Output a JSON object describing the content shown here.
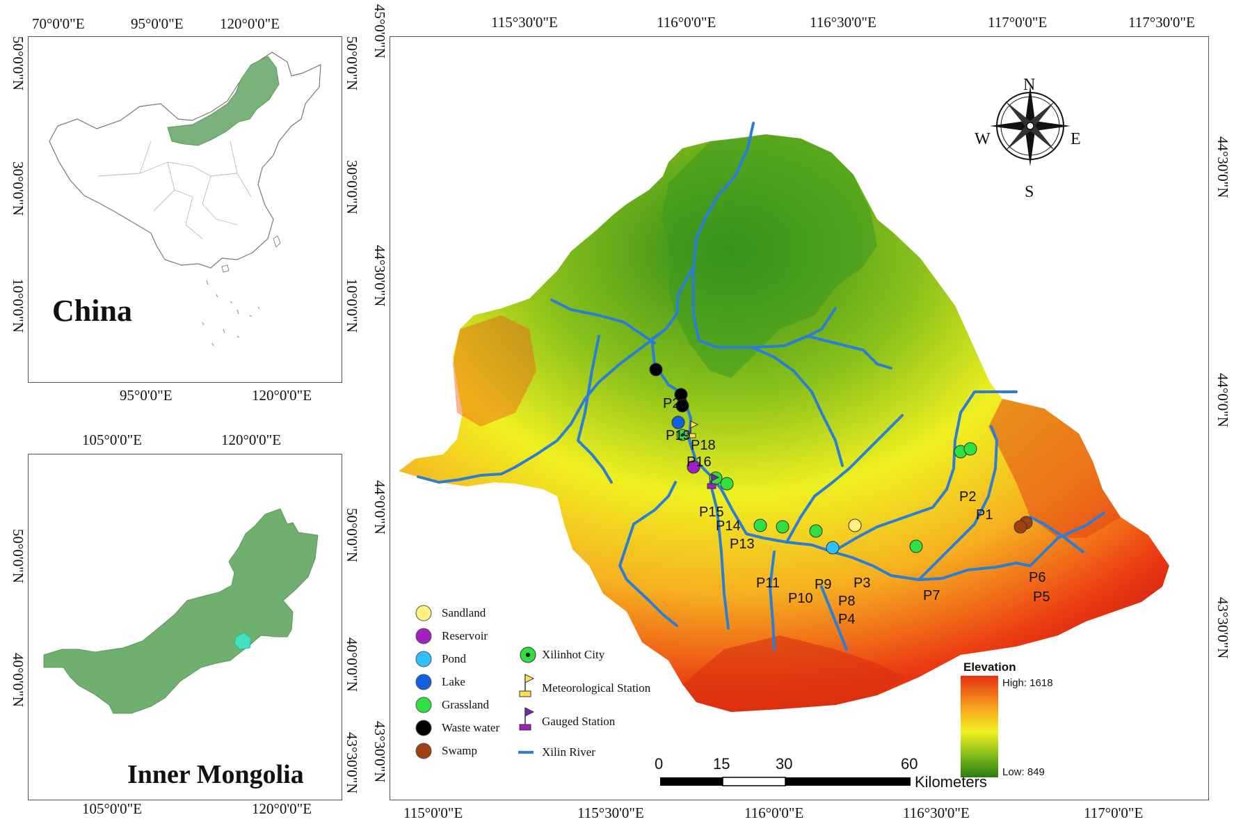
{
  "china_inset": {
    "title": "China",
    "top_ticks": [
      "70°0'0\"E",
      "95°0'0\"E",
      "120°0'0\"E"
    ],
    "bottom_ticks": [
      "95°0'0\"E",
      "120°0'0\"E"
    ],
    "left_ticks": [
      "50°0'0\"N",
      "30°0'0\"N",
      "10°0'0\"N"
    ],
    "right_ticks": [
      "50°0'0\"N",
      "30°0'0\"N",
      "10°0'0\"N"
    ],
    "highlight_color": "#7bb27b"
  },
  "mongolia_inset": {
    "title": "Inner Mongolia",
    "top_ticks": [
      "105°0'0\"E",
      "120°0'0\"E"
    ],
    "bottom_ticks": [
      "105°0'0\"E",
      "120°0'0\"E"
    ],
    "left_ticks": [
      "50°0'0\"N",
      "40°0'0\"N"
    ],
    "right_ticks": [
      "50°0'0\"N",
      "40°0'0\"N",
      "43°30'0\"N"
    ],
    "fill_color": "#6fb06f",
    "basin_color": "#40e0c0"
  },
  "main_map": {
    "top_ticks": [
      "115°30'0\"E",
      "116°0'0\"E",
      "116°30'0\"E",
      "117°0'0\"E",
      "117°30'0\"E"
    ],
    "bottom_ticks": [
      "115°0'0\"E",
      "115°30'0\"E",
      "116°0'0\"E",
      "116°30'0\"E",
      "117°0'0\"E"
    ],
    "left_ticks": [
      "45°0'0\"N",
      "44°30'0\"N",
      "44°0'0\"N",
      "43°30'0\"N"
    ],
    "right_ticks": [
      "44°30'0\"N",
      "44°0'0\"N",
      "43°30'0\"N"
    ],
    "compass": {
      "n": "N",
      "s": "S",
      "e": "E",
      "w": "W"
    },
    "river_color": "#2a7fd4",
    "sample_points": [
      "P1",
      "P2",
      "P3",
      "P4",
      "P5",
      "P6",
      "P7",
      "P8",
      "P9",
      "P10",
      "P11",
      "P13",
      "P14",
      "P15",
      "P16",
      "P18",
      "P19",
      "P20"
    ],
    "legend": {
      "categories": [
        {
          "label": "Sandland",
          "color": "#fff080"
        },
        {
          "label": "Reservoir",
          "color": "#a020c0"
        },
        {
          "label": "Pond",
          "color": "#30c0ff"
        },
        {
          "label": "Lake",
          "color": "#1060e0"
        },
        {
          "label": "Grassland",
          "color": "#30e040"
        },
        {
          "label": "Waste water",
          "color": "#000000"
        },
        {
          "label": "Swamp",
          "color": "#a04010"
        }
      ],
      "symbols": {
        "city": "Xilinhot City",
        "met_station": "Meteorological Station",
        "gauged_station": "Gauged Station",
        "river": "Xilin River"
      }
    },
    "elevation": {
      "title": "Elevation",
      "high": "High: 1618",
      "low": "Low: 849"
    },
    "scale_bar": {
      "labels": [
        "0",
        "15",
        "30",
        "60"
      ],
      "unit": "Kilometers"
    }
  }
}
